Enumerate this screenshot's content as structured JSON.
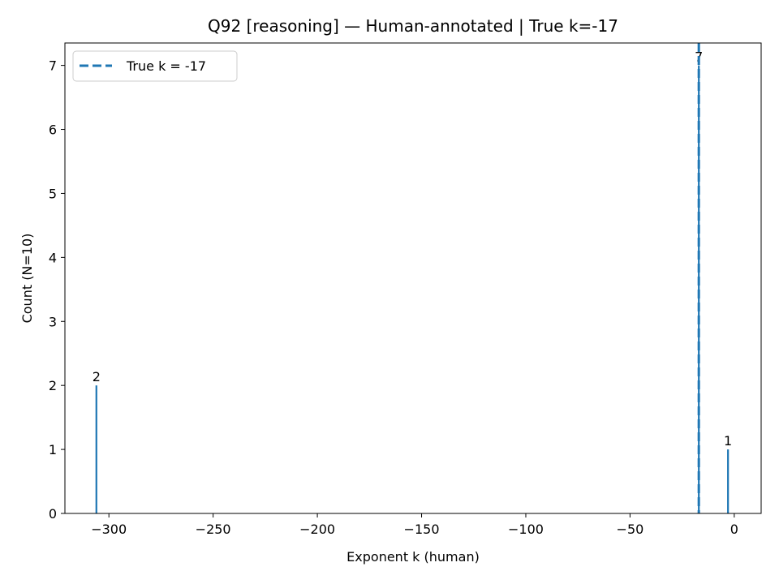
{
  "chart_data": {
    "type": "bar",
    "title": "Q92 [reasoning] — Human-annotated | True k=-17",
    "xlabel": "Exponent k (human)",
    "ylabel": "Count (N=10)",
    "xlim": [
      -321.1,
      12.9
    ],
    "ylim": [
      0,
      7.35
    ],
    "xticks": [
      -300,
      -250,
      -200,
      -150,
      -100,
      -50,
      0
    ],
    "xtick_labels": [
      "−300",
      "−250",
      "−200",
      "−150",
      "−100",
      "−50",
      "0"
    ],
    "yticks": [
      0,
      1,
      2,
      3,
      4,
      5,
      6,
      7
    ],
    "ytick_labels": [
      "0",
      "1",
      "2",
      "3",
      "4",
      "5",
      "6",
      "7"
    ],
    "bars": [
      {
        "x": -306,
        "value": 2,
        "label": "2"
      },
      {
        "x": -17,
        "value": 7,
        "label": "7"
      },
      {
        "x": -3,
        "value": 1,
        "label": "1"
      }
    ],
    "reference_line": {
      "x": -17,
      "style": "dashed",
      "label": "True k = -17"
    },
    "legend": {
      "position": "top-left",
      "entries": [
        "True k = -17"
      ]
    },
    "colors": {
      "bar": "#1f77b4",
      "reference_line": "#1f77b4"
    },
    "grid": false
  }
}
